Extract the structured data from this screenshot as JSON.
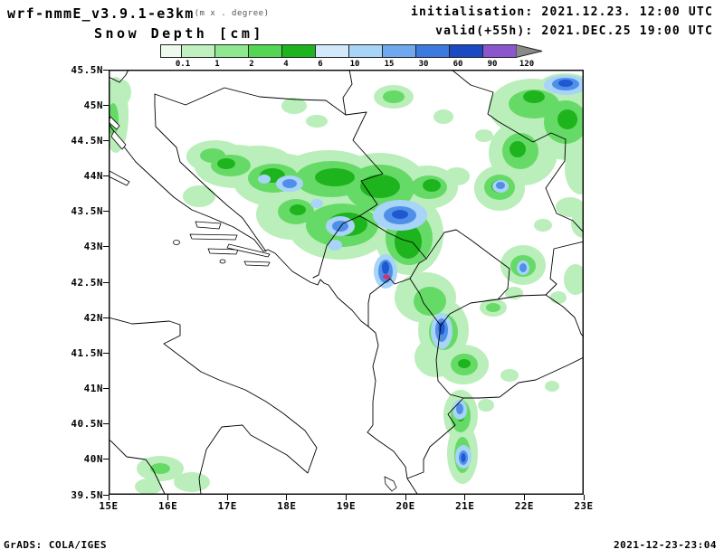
{
  "header": {
    "model": "wrf-nmmE_v3.9.1-e3km",
    "units_note": "(m x . degree)",
    "field": "Snow Depth [cm]",
    "init_label": "initialisation: 2021.12.23.  12:00 UTC",
    "valid_label": "valid(+55h): 2021.DEC.25 19:00 UTC"
  },
  "legend": {
    "labels": [
      "0.1",
      "1",
      "2",
      "4",
      "6",
      "10",
      "15",
      "30",
      "60",
      "90",
      "120"
    ],
    "segment_colors": [
      "#edfaed",
      "#c0f0c0",
      "#8fe88f",
      "#54d654",
      "#1eb41e",
      "#d2e8fb",
      "#a8d4f8",
      "#6fa8ee",
      "#3c7ae0",
      "#1b49c4",
      "#8a55cd"
    ],
    "arrow_color": "#8a8a8a"
  },
  "map": {
    "lat_labels": [
      "45.5N",
      "45N",
      "44.5N",
      "44N",
      "43.5N",
      "43N",
      "42.5N",
      "42N",
      "41.5N",
      "41N",
      "40.5N",
      "40N",
      "39.5N"
    ],
    "lon_labels": [
      "15E",
      "16E",
      "17E",
      "18E",
      "19E",
      "20E",
      "21E",
      "22E",
      "23E"
    ]
  },
  "footer": {
    "left": "GrADS: COLA/IGES",
    "right": "2021-12-23-23:04"
  },
  "chart_data": {
    "type": "heatmap",
    "title": "Snow Depth [cm]",
    "model": "wrf-nmmE_v3.9.1-e3km",
    "initialisation": "2021.12.23. 12:00 UTC",
    "valid": "2021.DEC.25 19:00 UTC (+55h)",
    "units": "cm",
    "levels": [
      0.1,
      1,
      2,
      4,
      6,
      10,
      15,
      30,
      60,
      90,
      120
    ],
    "level_colors": [
      "#edfaed",
      "#c0f0c0",
      "#8fe88f",
      "#54d654",
      "#1eb41e",
      "#d2e8fb",
      "#a8d4f8",
      "#6fa8ee",
      "#3c7ae0",
      "#1b49c4",
      "#8a55cd",
      "#8a8a8a"
    ],
    "lon_range_deg_east": [
      15,
      23
    ],
    "lat_range_deg_north": [
      39.5,
      45.5
    ],
    "legend_position": "top",
    "grid": false
  }
}
